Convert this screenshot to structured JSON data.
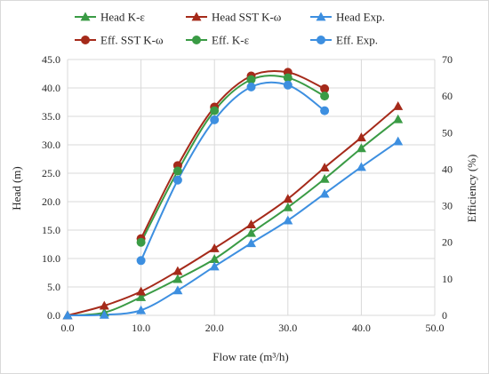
{
  "chart_data": {
    "type": "line",
    "xlabel": "Flow rate (m³/h)",
    "ylabel": "Head (m)",
    "y2label": "Efficiency (%)",
    "xlim": [
      0,
      50
    ],
    "ylim": [
      0,
      45
    ],
    "y2lim": [
      0,
      70
    ],
    "xticks": [
      "0.0",
      "10.0",
      "20.0",
      "30.0",
      "40.0",
      "50.0"
    ],
    "yticks": [
      "0.0",
      "5.0",
      "10.0",
      "15.0",
      "20.0",
      "25.0",
      "30.0",
      "35.0",
      "40.0",
      "45.0"
    ],
    "y2ticks": [
      "0",
      "10",
      "20",
      "30",
      "40",
      "50",
      "60",
      "70"
    ],
    "grid": true,
    "legend_position": "top",
    "series": [
      {
        "name": "Head K-ε",
        "axis": "left",
        "marker": "triangle",
        "color": "#3a9b45",
        "x": [
          0,
          5,
          10,
          15,
          20,
          25,
          30,
          35,
          40,
          45
        ],
        "y": [
          0,
          0.5,
          3.2,
          6.4,
          9.9,
          14.5,
          19.0,
          24.0,
          29.4,
          34.5
        ]
      },
      {
        "name": "Head SST K-ω",
        "axis": "left",
        "marker": "triangle",
        "color": "#a52a1a",
        "x": [
          0,
          5,
          10,
          15,
          20,
          25,
          30,
          35,
          40,
          45
        ],
        "y": [
          0,
          1.7,
          4.2,
          7.8,
          11.8,
          16.0,
          20.5,
          26.0,
          31.3,
          36.8
        ]
      },
      {
        "name": "Head Exp.",
        "axis": "left",
        "marker": "triangle",
        "color": "#3d8fe0",
        "x": [
          0,
          5,
          10,
          15,
          20,
          25,
          30,
          35,
          40,
          45
        ],
        "y": [
          0,
          0.1,
          0.9,
          4.4,
          8.6,
          12.7,
          16.7,
          21.4,
          26.1,
          30.6
        ]
      },
      {
        "name": "Eff. SST K-ω",
        "axis": "right",
        "marker": "circle",
        "color": "#a52a1a",
        "x": [
          10,
          15,
          20,
          25,
          30,
          35
        ],
        "y": [
          21.0,
          41.0,
          57.0,
          65.5,
          66.5,
          62.0
        ]
      },
      {
        "name": "Eff. K-ε",
        "axis": "right",
        "marker": "circle",
        "color": "#3a9b45",
        "x": [
          10,
          15,
          20,
          25,
          30,
          35
        ],
        "y": [
          20.0,
          39.5,
          56.0,
          64.5,
          65.0,
          60.0
        ]
      },
      {
        "name": "Eff. Exp.",
        "axis": "right",
        "marker": "circle",
        "color": "#3d8fe0",
        "x": [
          10,
          15,
          20,
          25,
          30,
          35
        ],
        "y": [
          15.0,
          37.0,
          53.5,
          62.5,
          63.0,
          56.0
        ]
      }
    ]
  }
}
